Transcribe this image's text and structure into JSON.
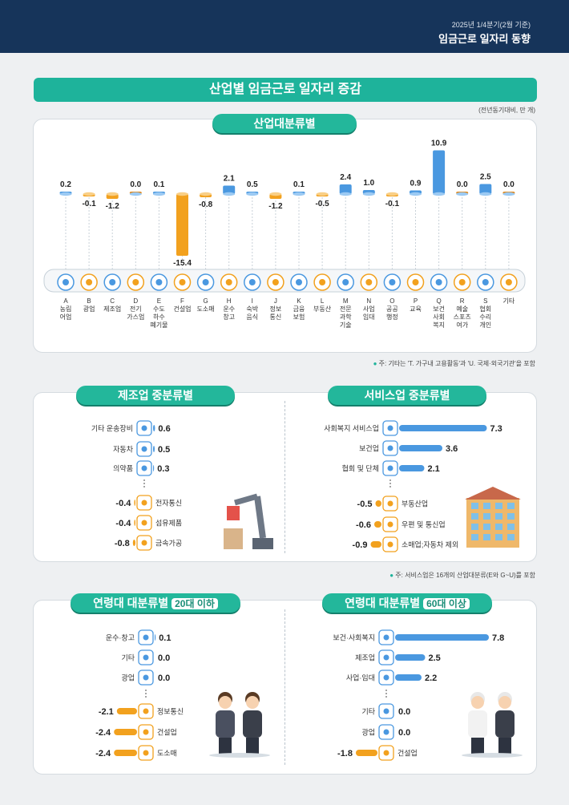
{
  "header": {
    "subtitle": "2025년 1/4분기(2월 기준)",
    "title": "임금근로 일자리 동향"
  },
  "banner": "산업별 임금근로 일자리 증감",
  "unit_note": "(전년동기대비, 만 개)",
  "colors": {
    "positive": "#4a98e0",
    "negative": "#f2a11e",
    "accent": "#1eb39b",
    "header": "#16345a"
  },
  "industry_tab": "산업대분류별",
  "industry_note": "주: 기타는 'T. 가구내 고용활동'과 'U. 국제·외국기관'을 포함",
  "service_note": "주: 서비스업은 16개의 산업대분류(E와 G~U)를 포함",
  "chart_data": [
    {
      "type": "bar",
      "title": "산업대분류별",
      "categories": [
        "A",
        "B",
        "C",
        "D",
        "E",
        "F",
        "G",
        "H",
        "I",
        "J",
        "K",
        "L",
        "M",
        "N",
        "O",
        "P",
        "Q",
        "R",
        "S",
        "기타"
      ],
      "category_labels": [
        "농림어업",
        "광업",
        "제조업",
        "전기가스업",
        "수도하수폐기물",
        "건설업",
        "도소매",
        "운수창고",
        "숙박음식",
        "정보통신",
        "금융보험",
        "부동산",
        "전문과학기술",
        "사업임대",
        "공공행정",
        "교육",
        "보건사회복지",
        "예술스포츠여가",
        "협회수리개인",
        "기타"
      ],
      "label_lines": [
        [
          "A",
          "농림",
          "어업"
        ],
        [
          "B",
          "광업"
        ],
        [
          "C",
          "제조업"
        ],
        [
          "D",
          "전기",
          "가스업"
        ],
        [
          "E",
          "수도",
          "하수",
          "폐기물"
        ],
        [
          "F",
          "건설업"
        ],
        [
          "G",
          "도소매"
        ],
        [
          "H",
          "운수",
          "창고"
        ],
        [
          "I",
          "숙박",
          "음식"
        ],
        [
          "J",
          "정보",
          "통신"
        ],
        [
          "K",
          "금융",
          "보험"
        ],
        [
          "L",
          "부동산"
        ],
        [
          "M",
          "전문",
          "과학",
          "기술"
        ],
        [
          "N",
          "사업",
          "임대"
        ],
        [
          "O",
          "공공",
          "행정"
        ],
        [
          "P",
          "교육"
        ],
        [
          "Q",
          "보건",
          "사회",
          "복지"
        ],
        [
          "R",
          "예술",
          "스포츠",
          "여가"
        ],
        [
          "S",
          "협회",
          "수리",
          "개인"
        ],
        [
          "기타"
        ]
      ],
      "value_labels": [
        "0.2",
        "-0.1",
        "-1.2",
        "0.0",
        "0.1",
        "-15.4",
        "-0.8",
        "2.1",
        "0.5",
        "-1.2",
        "0.1",
        "-0.5",
        "2.4",
        "1.0",
        "-0.1",
        "0.9",
        "10.9",
        "0.0",
        "2.5",
        "0.0"
      ],
      "values": [
        0.2,
        -0.1,
        -1.2,
        0.0,
        0.1,
        -15.4,
        -0.8,
        2.1,
        0.5,
        -1.2,
        0.1,
        -0.5,
        2.4,
        1.0,
        -0.1,
        0.9,
        10.9,
        0.0,
        2.5,
        0.0
      ]
    },
    {
      "type": "bar",
      "title": "제조업 중분류별",
      "categories": [
        "기타 운송장비",
        "자동차",
        "의약품",
        "전자통신",
        "섬유제품",
        "금속가공"
      ],
      "icons": [
        "ship-icon",
        "car-icon",
        "pill-icon",
        "monitor-icon",
        "fabric-icon",
        "gear-icon"
      ],
      "value_labels": [
        "0.6",
        "0.5",
        "0.3",
        "-0.4",
        "-0.4",
        "-0.8"
      ],
      "values": [
        0.6,
        0.5,
        0.3,
        -0.4,
        -0.4,
        -0.8
      ]
    },
    {
      "type": "bar",
      "title": "서비스업 중분류별",
      "categories": [
        "사회복지 서비스업",
        "보건업",
        "협회 및 단체",
        "부동산업",
        "우편 및 통신업",
        "소매업;자동차 제외"
      ],
      "icons": [
        "heart-hand-icon",
        "medical-cross-icon",
        "group-icon",
        "house-icon",
        "mail-icon",
        "cart-icon"
      ],
      "value_labels": [
        "7.3",
        "3.6",
        "2.1",
        "-0.5",
        "-0.6",
        "-0.9"
      ],
      "values": [
        7.3,
        3.6,
        2.1,
        -0.5,
        -0.6,
        -0.9
      ]
    },
    {
      "type": "bar",
      "title": "연령대 대분류별",
      "title_highlight": "20대 이하",
      "categories": [
        "운수·창고",
        "기타",
        "광업",
        "정보통신",
        "건설업",
        "도소매"
      ],
      "icons": [
        "truck-icon",
        "document-icon",
        "helmet-icon",
        "phone-icon",
        "crane-icon",
        "basket-icon"
      ],
      "value_labels": [
        "0.1",
        "0.0",
        "0.0",
        "-2.1",
        "-2.4",
        "-2.4"
      ],
      "values": [
        0.1,
        0.0,
        0.0,
        -2.1,
        -2.4,
        -2.4
      ]
    },
    {
      "type": "bar",
      "title": "연령대 대분류별",
      "title_highlight": "60대 이상",
      "categories": [
        "보건·사회복지",
        "제조업",
        "사업·임대",
        "기타",
        "광업",
        "건설업"
      ],
      "icons": [
        "medical-bag-icon",
        "gear-icon",
        "people-icon",
        "document-icon",
        "helmet-icon",
        "crane-icon"
      ],
      "value_labels": [
        "7.8",
        "2.5",
        "2.2",
        "0.0",
        "0.0",
        "-1.8"
      ],
      "values": [
        7.8,
        2.5,
        2.2,
        0.0,
        0.0,
        -1.8
      ]
    }
  ]
}
